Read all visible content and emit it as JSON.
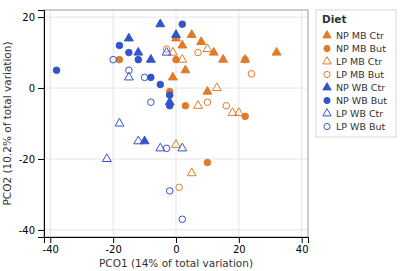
{
  "chart_data": {
    "type": "scatter",
    "xlabel": "PCO1 (14% of total variation)",
    "ylabel": "PCO2 (10.2% of total variation)",
    "xlim": [
      -42,
      42
    ],
    "ylim": [
      -42,
      22
    ],
    "xticks": [
      -40,
      -20,
      0,
      20,
      40
    ],
    "yticks": [
      -40,
      -20,
      0,
      20
    ],
    "grid": true,
    "legend": "right",
    "legend_title": "Diet",
    "series": [
      {
        "name": "NP MB Ctr",
        "color": "#E07B2A",
        "marker": "triangle",
        "x": [
          0,
          2,
          5,
          8,
          12,
          15,
          22,
          32,
          3,
          -1,
          10
        ],
        "values": [
          14,
          12,
          15,
          13,
          10,
          8,
          8,
          10,
          5,
          3,
          -1
        ]
      },
      {
        "name": "NP MB But",
        "color": "#E07B2A",
        "marker": "circle",
        "x": [
          -18,
          -2,
          0,
          3,
          10,
          22
        ],
        "values": [
          8,
          -1,
          8,
          -5,
          -21,
          -8
        ]
      },
      {
        "name": "LP MB Ctr",
        "color": "#E07B2A",
        "marker": "triangle-open",
        "x": [
          -1,
          2,
          10,
          13,
          18,
          20,
          0,
          5,
          7
        ],
        "values": [
          10,
          8,
          11,
          0,
          -7,
          -7,
          -16,
          -24,
          -5
        ]
      },
      {
        "name": "LP MB But",
        "color": "#E07B2A",
        "marker": "circle-open",
        "x": [
          -3,
          7,
          10,
          16,
          22,
          24,
          1
        ],
        "values": [
          11,
          10,
          -4,
          -5,
          8,
          4,
          -28
        ]
      },
      {
        "name": "NP WB Ctr",
        "color": "#3355CC",
        "marker": "triangle",
        "x": [
          -15,
          -12,
          -8,
          -5,
          0,
          -2,
          -10
        ],
        "values": [
          14,
          10,
          8,
          18,
          15,
          -4,
          -15
        ]
      },
      {
        "name": "NP WB But",
        "color": "#3355CC",
        "marker": "circle",
        "x": [
          -38,
          -18,
          -15,
          -12,
          -8,
          -5,
          -2,
          2,
          -2
        ],
        "values": [
          5,
          12,
          10,
          8,
          3,
          1,
          -2,
          18,
          -5
        ]
      },
      {
        "name": "LP WB Ctr",
        "color": "#3355CC",
        "marker": "triangle-open",
        "x": [
          -3,
          -18,
          -12,
          -22,
          -15,
          -5,
          2
        ],
        "values": [
          10,
          -10,
          -15,
          -20,
          3,
          -17,
          -17
        ]
      },
      {
        "name": "LP WB But",
        "color": "#3355CC",
        "marker": "circle-open",
        "x": [
          -20,
          -15,
          -10,
          -8,
          -3,
          -2,
          2
        ],
        "values": [
          8,
          5,
          3,
          -4,
          -17,
          -29,
          -37
        ]
      }
    ]
  }
}
